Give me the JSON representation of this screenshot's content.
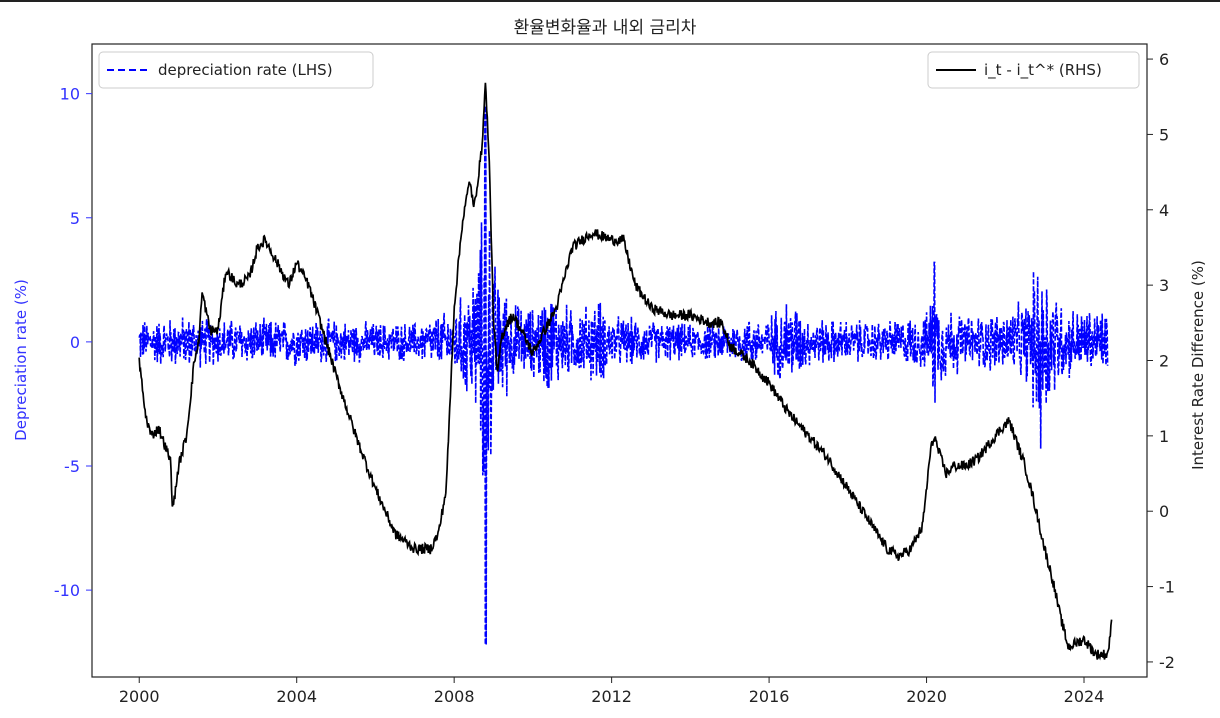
{
  "chart_data": {
    "type": "line",
    "title": "환율변화율과 내외 금리차",
    "xlabel": "",
    "x_ticks": [
      "2000",
      "2004",
      "2008",
      "2012",
      "2016",
      "2020",
      "2024"
    ],
    "x_range": [
      1998.8,
      2025.6
    ],
    "y_left": {
      "label": "Depreciation rate (%)",
      "range": [
        -13.5,
        12.0
      ],
      "ticks": [
        10,
        5,
        0,
        -5,
        -10
      ],
      "tick_labels": [
        "10",
        "5",
        "0",
        "-5",
        "-10"
      ],
      "color": "#3333ff"
    },
    "y_right": {
      "label": "Interest Rate Difference (%)",
      "range": [
        -2.2,
        6.2
      ],
      "ticks": [
        6,
        5,
        4,
        3,
        2,
        1,
        0,
        -1,
        -2
      ],
      "tick_labels": [
        "6",
        "5",
        "4",
        "3",
        "2",
        "1",
        "0",
        "-1",
        "-2"
      ],
      "color": "#222222"
    },
    "legend_left": {
      "position": "upper-left",
      "label": "depreciation rate (LHS)"
    },
    "legend_right": {
      "position": "upper-right",
      "label": "i_t - i_t^* (RHS)"
    },
    "grid": false,
    "series": [
      {
        "name": "depreciation rate (LHS)",
        "axis": "left",
        "style": "dashed",
        "color": "#0000ff",
        "x": [
          2000.0,
          2001.0,
          2002.0,
          2003.0,
          2004.0,
          2005.0,
          2006.0,
          2007.0,
          2008.0,
          2008.3,
          2008.6,
          2008.7,
          2008.8,
          2008.85,
          2008.9,
          2009.0,
          2009.1,
          2009.3,
          2009.5,
          2010.0,
          2010.4,
          2011.0,
          2011.7,
          2012.0,
          2013.0,
          2014.0,
          2015.0,
          2016.0,
          2016.5,
          2017.0,
          2018.0,
          2019.0,
          2020.0,
          2020.2,
          2020.3,
          2021.0,
          2022.0,
          2022.5,
          2022.9,
          2023.5,
          2024.0,
          2024.6
        ],
        "envelope_abs": [
          1.0,
          1.2,
          1.1,
          1.0,
          1.1,
          1.0,
          0.9,
          0.9,
          1.5,
          2.5,
          4.0,
          5.5,
          12.0,
          9.0,
          6.0,
          4.0,
          3.0,
          2.6,
          1.8,
          1.6,
          2.5,
          1.5,
          2.0,
          1.2,
          1.0,
          0.8,
          1.0,
          1.2,
          2.2,
          1.1,
          1.0,
          1.0,
          1.3,
          3.2,
          2.0,
          1.2,
          1.5,
          1.8,
          4.3,
          1.7,
          1.5,
          1.6
        ]
      },
      {
        "name": "i_t - i_t^* (RHS)",
        "axis": "right",
        "style": "solid",
        "color": "#000000",
        "x": [
          2000.0,
          2000.15,
          2000.3,
          2000.5,
          2000.7,
          2000.8,
          2000.85,
          2001.0,
          2001.2,
          2001.4,
          2001.5,
          2001.6,
          2001.8,
          2002.0,
          2002.2,
          2002.5,
          2002.8,
          2003.0,
          2003.2,
          2003.5,
          2003.8,
          2004.0,
          2004.3,
          2004.6,
          2005.0,
          2005.5,
          2006.0,
          2006.5,
          2007.0,
          2007.4,
          2007.6,
          2007.8,
          2008.0,
          2008.2,
          2008.4,
          2008.5,
          2008.7,
          2008.8,
          2008.9,
          2009.0,
          2009.1,
          2009.2,
          2009.35,
          2009.5,
          2010.0,
          2010.3,
          2010.6,
          2011.0,
          2011.5,
          2012.0,
          2012.3,
          2012.6,
          2013.0,
          2013.5,
          2014.0,
          2014.5,
          2014.8,
          2015.0,
          2015.5,
          2016.0,
          2016.5,
          2017.0,
          2017.5,
          2018.0,
          2018.5,
          2019.0,
          2019.3,
          2019.6,
          2019.9,
          2020.1,
          2020.2,
          2020.3,
          2020.5,
          2020.7,
          2021.0,
          2021.3,
          2021.6,
          2021.9,
          2022.1,
          2022.3,
          2022.5,
          2022.7,
          2023.0,
          2023.2,
          2023.4,
          2023.6,
          2024.0,
          2024.3,
          2024.6,
          2024.7
        ],
        "y": [
          2.0,
          1.3,
          1.0,
          1.1,
          0.8,
          0.65,
          0.0,
          0.6,
          1.0,
          2.0,
          2.2,
          2.9,
          2.4,
          2.4,
          3.2,
          3.0,
          3.1,
          3.5,
          3.6,
          3.3,
          3.0,
          3.3,
          3.0,
          2.5,
          1.8,
          1.0,
          0.3,
          -0.3,
          -0.5,
          -0.5,
          -0.3,
          0.3,
          2.7,
          3.8,
          4.4,
          4.0,
          4.8,
          5.7,
          4.5,
          2.5,
          1.8,
          2.3,
          2.5,
          2.6,
          2.1,
          2.4,
          2.7,
          3.5,
          3.7,
          3.6,
          3.6,
          3.0,
          2.7,
          2.6,
          2.6,
          2.5,
          2.5,
          2.2,
          2.0,
          1.7,
          1.3,
          1.0,
          0.7,
          0.3,
          -0.1,
          -0.5,
          -0.6,
          -0.5,
          -0.2,
          0.8,
          1.0,
          0.8,
          0.5,
          0.6,
          0.6,
          0.7,
          0.9,
          1.1,
          1.2,
          0.9,
          0.6,
          0.2,
          -0.5,
          -0.9,
          -1.4,
          -1.8,
          -1.7,
          -1.9,
          -1.9,
          -1.5
        ]
      }
    ]
  }
}
